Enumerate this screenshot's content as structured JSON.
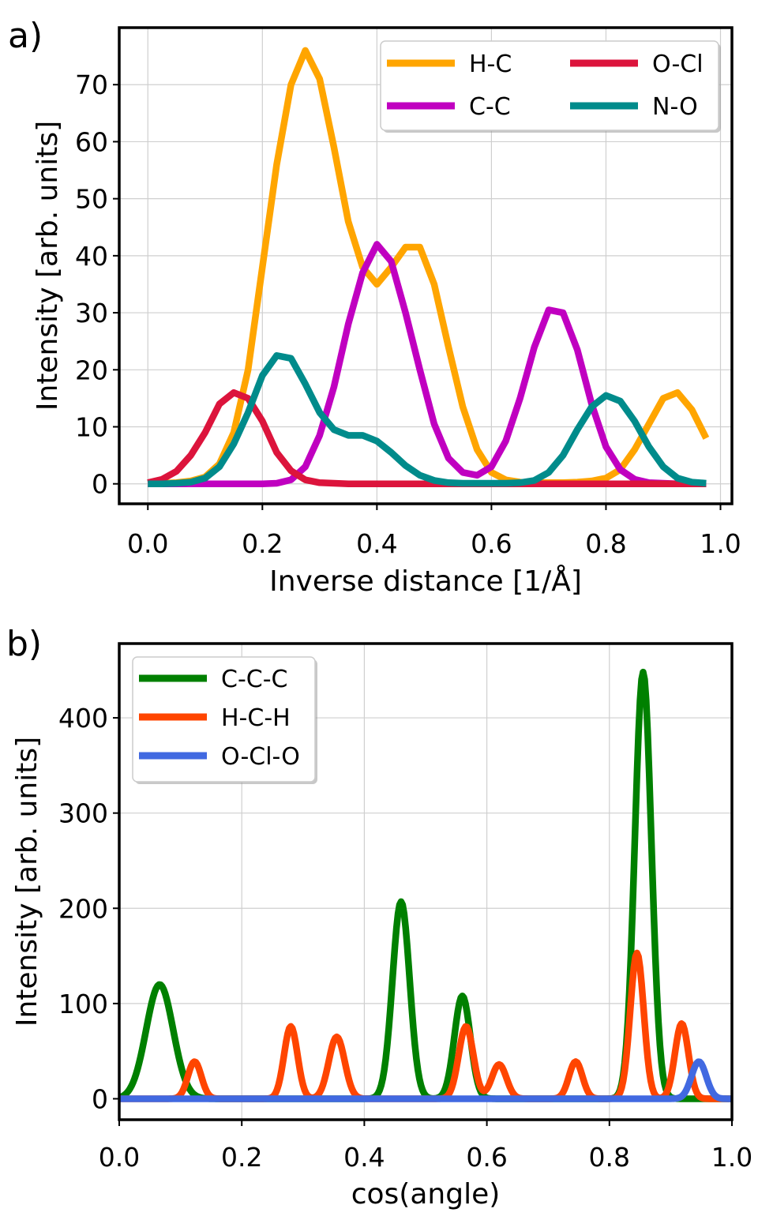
{
  "chart_data": [
    {
      "panel_label": "a)",
      "type": "line",
      "xlabel": "Inverse distance [1/Å]",
      "ylabel": "Intensity [arb. units]",
      "xlim": [
        -0.05,
        1.02
      ],
      "ylim": [
        -3.5,
        80
      ],
      "xticks": [
        0.0,
        0.2,
        0.4,
        0.6,
        0.8,
        1.0
      ],
      "xtick_labels": [
        "0.0",
        "0.2",
        "0.4",
        "0.6",
        "0.8",
        "1.0"
      ],
      "yticks": [
        0,
        10,
        20,
        30,
        40,
        50,
        60,
        70
      ],
      "ytick_labels": [
        "0",
        "10",
        "20",
        "30",
        "40",
        "50",
        "60",
        "70"
      ],
      "grid": true,
      "legend": {
        "position": "top-right",
        "columns": 2
      },
      "series": [
        {
          "name": "H-C",
          "color": "#FFA500",
          "x": [
            0.0,
            0.025,
            0.05,
            0.075,
            0.1,
            0.125,
            0.15,
            0.175,
            0.2,
            0.225,
            0.25,
            0.275,
            0.3,
            0.325,
            0.35,
            0.375,
            0.4,
            0.425,
            0.45,
            0.475,
            0.5,
            0.525,
            0.55,
            0.575,
            0.6,
            0.625,
            0.65,
            0.675,
            0.7,
            0.725,
            0.75,
            0.775,
            0.8,
            0.825,
            0.85,
            0.875,
            0.9,
            0.925,
            0.95,
            0.975
          ],
          "y": [
            0.1,
            0.1,
            0.2,
            0.5,
            1.2,
            3.5,
            9,
            20,
            38,
            56,
            70,
            76,
            71,
            59,
            46,
            38,
            35,
            38,
            41.5,
            41.5,
            35,
            24,
            13.5,
            6,
            2,
            0.7,
            0.3,
            0.2,
            0.2,
            0.2,
            0.3,
            0.5,
            1,
            2.5,
            6,
            10.5,
            15,
            16,
            13,
            8
          ]
        },
        {
          "name": "C-C",
          "color": "#C000C0",
          "x": [
            0.0,
            0.025,
            0.05,
            0.075,
            0.1,
            0.125,
            0.15,
            0.175,
            0.2,
            0.225,
            0.25,
            0.275,
            0.3,
            0.325,
            0.35,
            0.375,
            0.4,
            0.425,
            0.45,
            0.475,
            0.5,
            0.525,
            0.55,
            0.575,
            0.6,
            0.625,
            0.65,
            0.675,
            0.7,
            0.725,
            0.75,
            0.775,
            0.8,
            0.825,
            0.85,
            0.875,
            0.9,
            0.925,
            0.95,
            0.975
          ],
          "y": [
            0,
            0,
            0,
            0,
            0,
            0,
            0,
            0,
            0,
            0.1,
            0.7,
            3,
            8.5,
            17,
            28,
            37,
            42,
            39,
            30,
            20,
            10.5,
            4.5,
            2,
            1.5,
            3,
            7.5,
            15,
            24,
            30.5,
            30,
            23.5,
            14,
            6.5,
            2.5,
            0.8,
            0.2,
            0.1,
            0,
            0,
            0
          ]
        },
        {
          "name": "O-Cl",
          "color": "#DC143C",
          "x": [
            0.0,
            0.025,
            0.05,
            0.075,
            0.1,
            0.125,
            0.15,
            0.175,
            0.2,
            0.225,
            0.25,
            0.275,
            0.3,
            0.325,
            0.35,
            0.4,
            0.5,
            0.6,
            0.7,
            0.8,
            0.9,
            0.975
          ],
          "y": [
            0.2,
            0.8,
            2.2,
            5,
            9,
            14,
            16,
            15,
            11,
            5.5,
            2.3,
            0.7,
            0.2,
            0.1,
            0,
            0,
            0,
            0,
            0,
            0,
            0,
            0
          ]
        },
        {
          "name": "N-O",
          "color": "#008B8B",
          "x": [
            0.0,
            0.025,
            0.05,
            0.075,
            0.1,
            0.125,
            0.15,
            0.175,
            0.2,
            0.225,
            0.25,
            0.275,
            0.3,
            0.325,
            0.35,
            0.375,
            0.4,
            0.425,
            0.45,
            0.475,
            0.5,
            0.525,
            0.55,
            0.575,
            0.6,
            0.625,
            0.65,
            0.675,
            0.7,
            0.725,
            0.75,
            0.775,
            0.8,
            0.825,
            0.85,
            0.875,
            0.9,
            0.925,
            0.95,
            0.975
          ],
          "y": [
            0,
            0,
            0.1,
            0.3,
            1,
            3,
            7,
            12.5,
            19,
            22.5,
            22,
            17.5,
            12.5,
            9.5,
            8.5,
            8.5,
            7.5,
            5.5,
            3.2,
            1.5,
            0.6,
            0.2,
            0.1,
            0.1,
            0.1,
            0.1,
            0.2,
            0.6,
            2,
            5,
            9.5,
            13.5,
            15.5,
            14.5,
            11,
            6.5,
            3,
            1,
            0.3,
            0.1
          ]
        }
      ]
    },
    {
      "panel_label": "b)",
      "type": "line",
      "xlabel": "cos(angle)",
      "ylabel": "Intensity [arb. units]",
      "xlim": [
        0.0,
        1.0
      ],
      "ylim": [
        -22,
        478
      ],
      "xticks": [
        0.0,
        0.2,
        0.4,
        0.6,
        0.8,
        1.0
      ],
      "xtick_labels": [
        "0.0",
        "0.2",
        "0.4",
        "0.6",
        "0.8",
        "1.0"
      ],
      "yticks": [
        0,
        100,
        200,
        300,
        400
      ],
      "ytick_labels": [
        "0",
        "100",
        "200",
        "300",
        "400"
      ],
      "grid": true,
      "legend": {
        "position": "top-left",
        "columns": 1
      },
      "series": [
        {
          "name": "C-C-C",
          "color": "#008000",
          "peaks": [
            {
              "center": 0.066,
              "height": 120,
              "width": 0.022
            },
            {
              "center": 0.46,
              "height": 207,
              "width": 0.014
            },
            {
              "center": 0.56,
              "height": 108,
              "width": 0.013
            },
            {
              "center": 0.855,
              "height": 448,
              "width": 0.0135
            }
          ]
        },
        {
          "name": "H-C-H",
          "color": "#FF4500",
          "peaks": [
            {
              "center": 0.123,
              "height": 39,
              "width": 0.011
            },
            {
              "center": 0.28,
              "height": 76,
              "width": 0.011
            },
            {
              "center": 0.355,
              "height": 65,
              "width": 0.013
            },
            {
              "center": 0.566,
              "height": 76,
              "width": 0.012
            },
            {
              "center": 0.62,
              "height": 36,
              "width": 0.012
            },
            {
              "center": 0.745,
              "height": 39,
              "width": 0.011
            },
            {
              "center": 0.845,
              "height": 153,
              "width": 0.011
            },
            {
              "center": 0.918,
              "height": 79,
              "width": 0.011
            }
          ]
        },
        {
          "name": "O-Cl-O",
          "color": "#4169E1",
          "peaks": [
            {
              "center": 0.946,
              "height": 39,
              "width": 0.012
            }
          ]
        }
      ]
    }
  ]
}
